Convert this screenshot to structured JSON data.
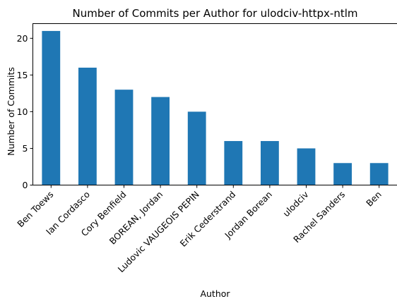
{
  "chart_data": {
    "type": "bar",
    "title": "Number of Commits per Author for ulodciv-httpx-ntlm",
    "xlabel": "Author",
    "ylabel": "Number of Commits",
    "categories": [
      "Ben Toews",
      "Ian Cordasco",
      "Cory Benfield",
      "BOREAN, Jordan",
      "Ludovic VAUGEOIS PEPIN",
      "Erik Cederstrand",
      "Jordan Borean",
      "ulodciv",
      "Rachel Sanders",
      "Ben"
    ],
    "values": [
      21,
      16,
      13,
      12,
      10,
      6,
      6,
      5,
      3,
      3
    ],
    "ylim": [
      0,
      22
    ],
    "yticks": [
      "0",
      "5",
      "10",
      "15",
      "20"
    ],
    "bar_color": "#1f77b4",
    "grid": false,
    "legend": "none"
  }
}
